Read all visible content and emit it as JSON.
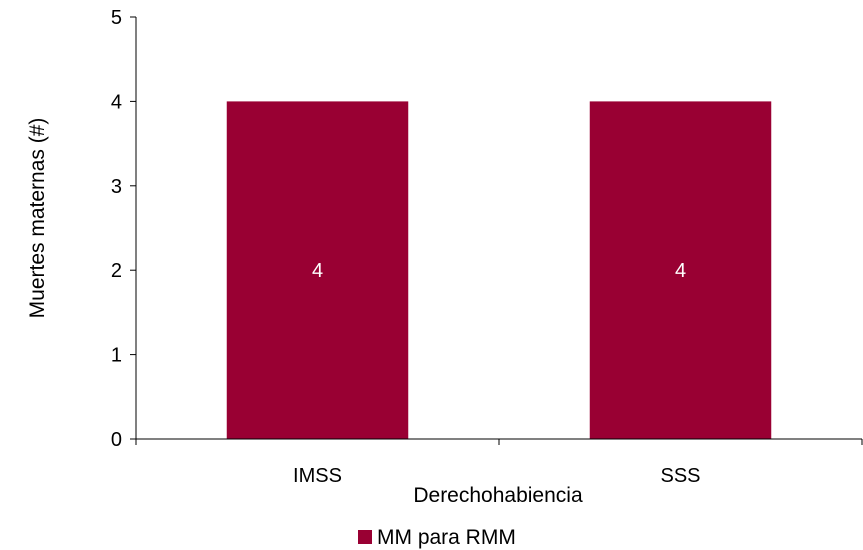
{
  "chart_data": {
    "type": "bar",
    "title": "",
    "categories": [
      "IMSS",
      "SSS"
    ],
    "series": [
      {
        "name": "MM para RMM",
        "values": [
          4,
          4
        ],
        "color": "#990033"
      }
    ],
    "data_labels": [
      "4",
      "4"
    ],
    "xlabel": "Derechohabiencia",
    "ylabel": "Muertes maternas (#)",
    "ylim": [
      0,
      5
    ],
    "yticks": [
      0,
      1,
      2,
      3,
      4,
      5
    ],
    "grid": false,
    "legend_position": "bottom",
    "colors": {
      "axis": "#000000",
      "bar": "#990033",
      "data_label": "#ffffff"
    }
  }
}
